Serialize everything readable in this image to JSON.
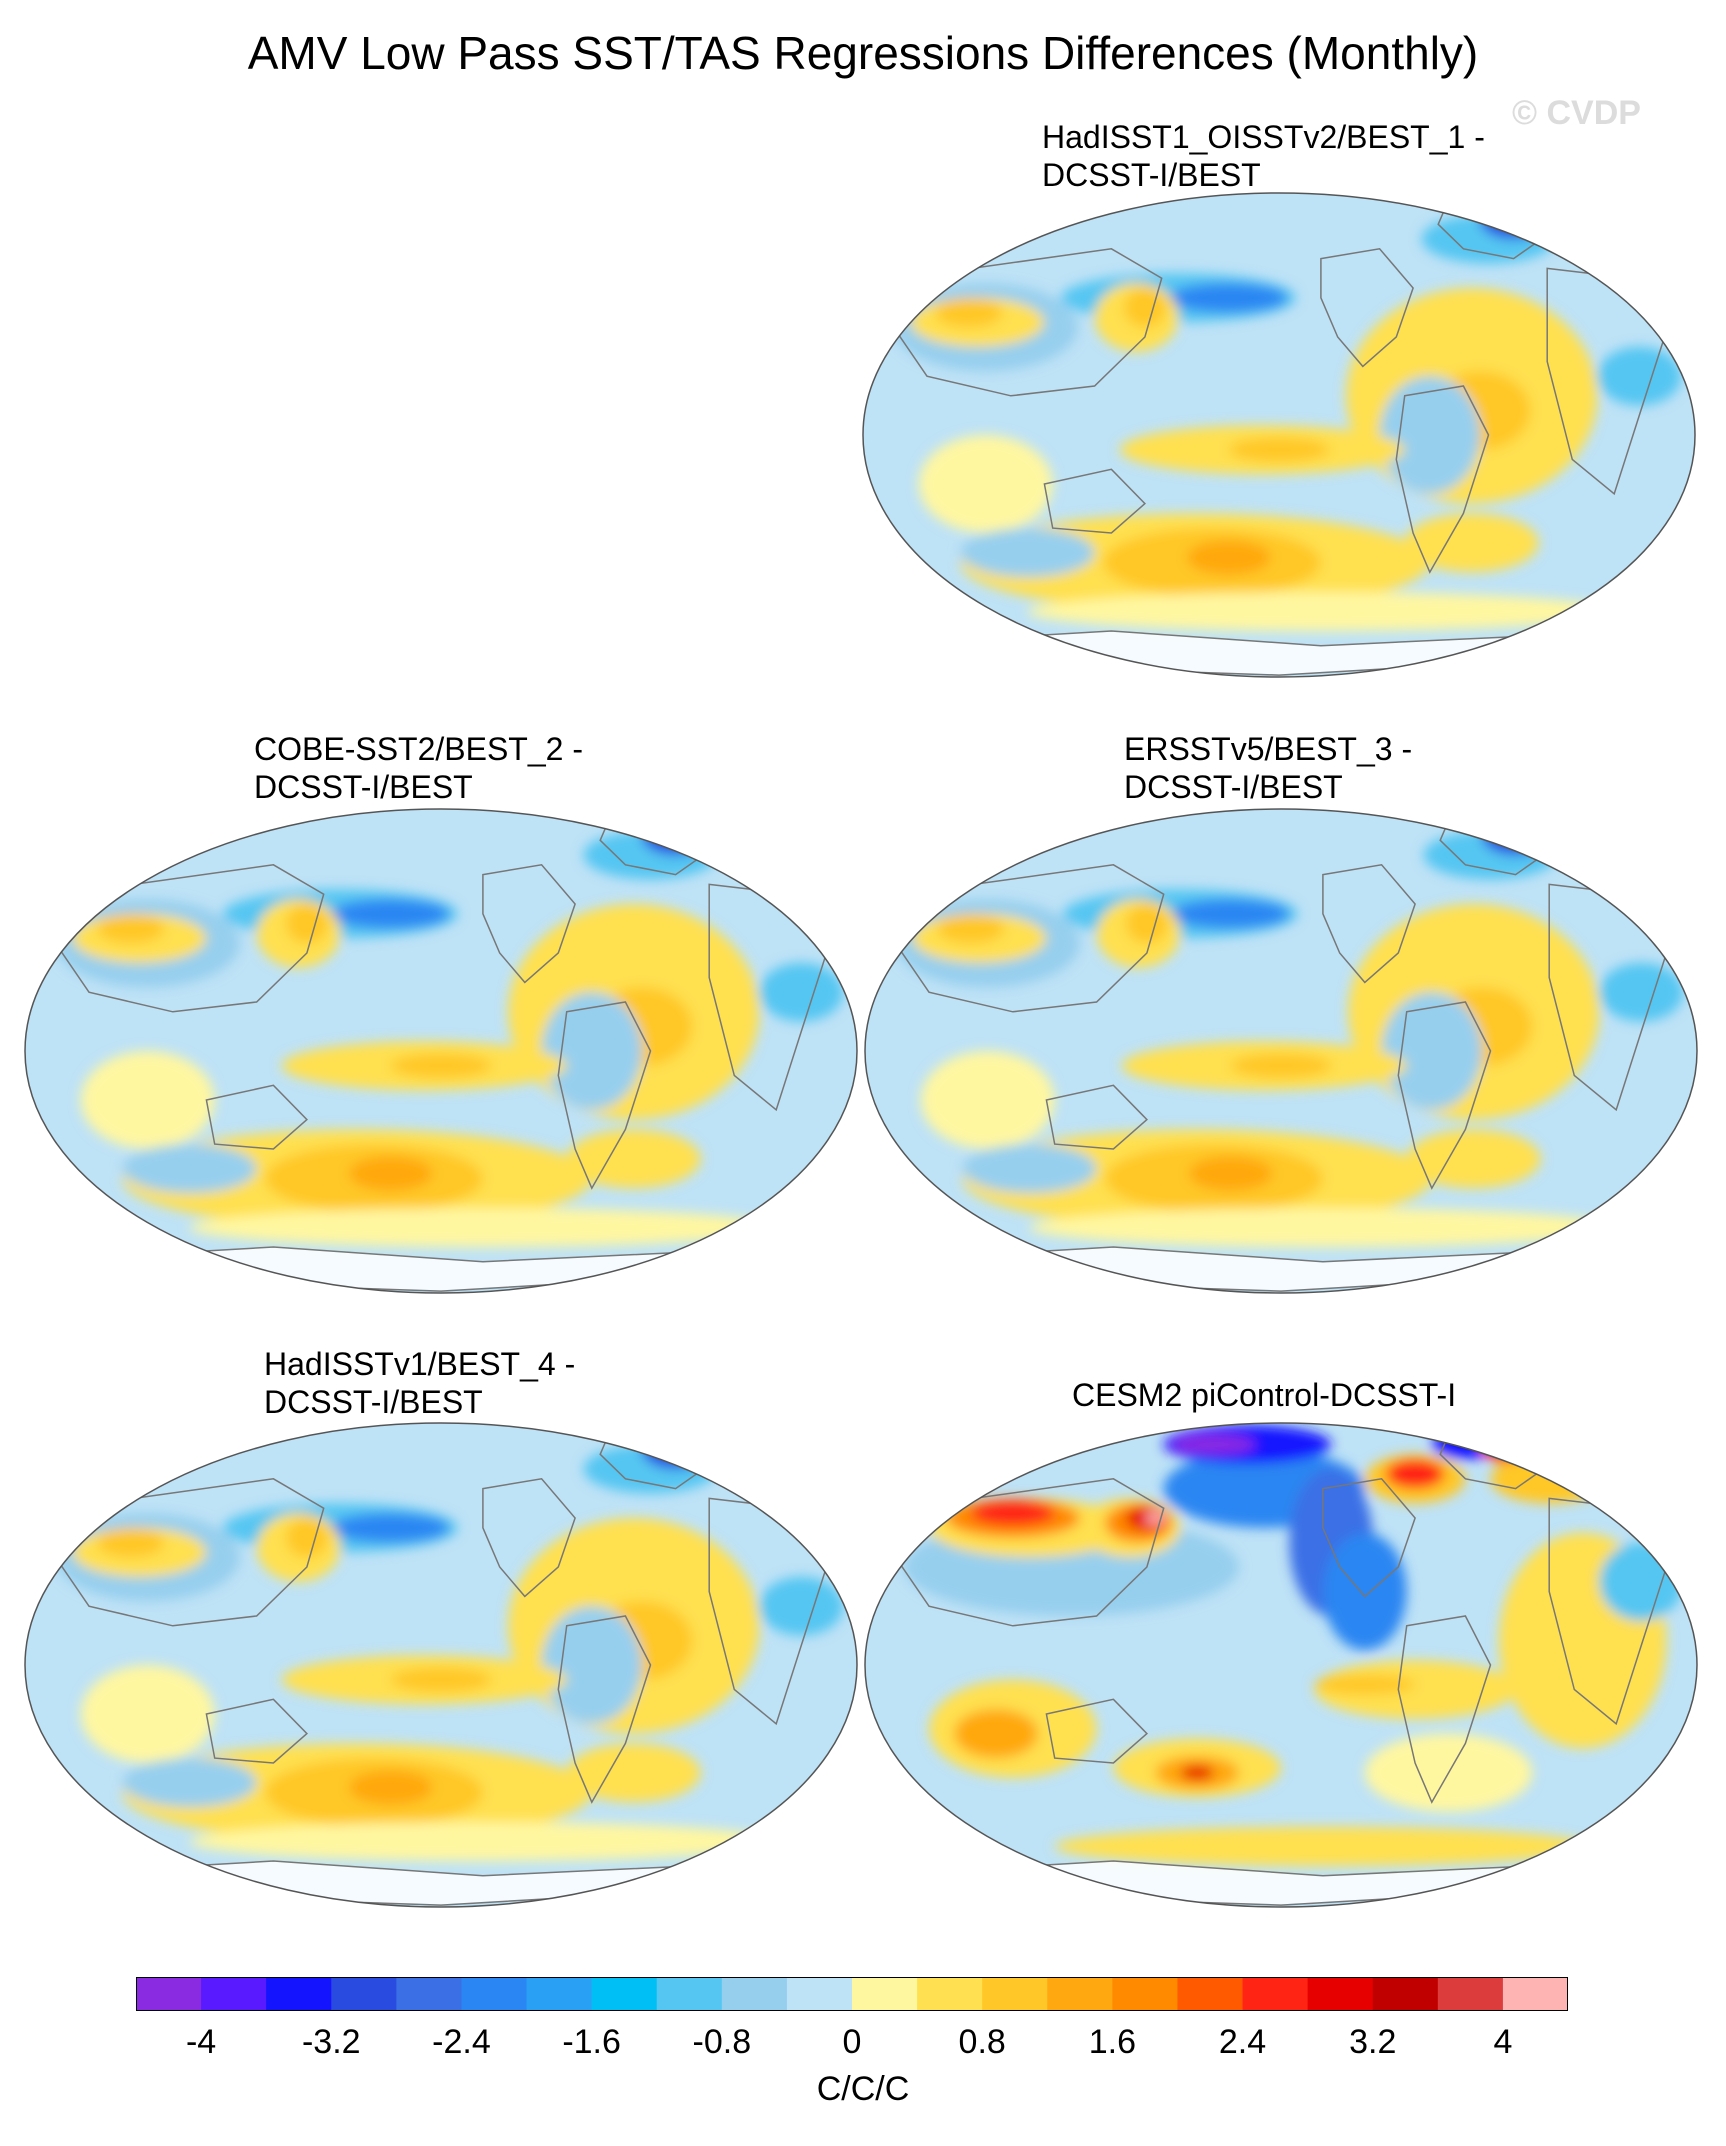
{
  "title": "AMV Low Pass SST/TAS Regressions Differences (Monthly)",
  "watermark": "© CVDP",
  "panels": [
    {
      "id": "p1",
      "title": "HadISST1_OISSTv2/BEST_1 -\nDCSST-I/BEST",
      "style": "obs"
    },
    {
      "id": "p2",
      "title": "COBE-SST2/BEST_2 -\nDCSST-I/BEST",
      "style": "obs"
    },
    {
      "id": "p3",
      "title": "ERSSTv5/BEST_3 -\nDCSST-I/BEST",
      "style": "obs"
    },
    {
      "id": "p4",
      "title": "HadISSTv1/BEST_4 -\nDCSST-I/BEST",
      "style": "obs"
    },
    {
      "id": "p5",
      "title": "CESM2 piControl-DCSST-I",
      "style": "model"
    }
  ],
  "colorbar": {
    "colors": [
      "#8a2be2",
      "#5a1aff",
      "#1414ff",
      "#2a4be0",
      "#3a6fe6",
      "#2a86f2",
      "#2aa0f5",
      "#00bff5",
      "#55c6f2",
      "#96cfee",
      "#bee2f6",
      "#fff7a0",
      "#ffe050",
      "#ffc828",
      "#ffa810",
      "#ff8a00",
      "#ff5a00",
      "#ff2414",
      "#e60000",
      "#c00000",
      "#dc3c3c",
      "#ffb4b4"
    ],
    "labels": [
      "-4",
      "-3.2",
      "-2.4",
      "-1.6",
      "-0.8",
      "0",
      "0.8",
      "1.6",
      "2.4",
      "3.2",
      "4"
    ],
    "units": "C/C/C"
  }
}
